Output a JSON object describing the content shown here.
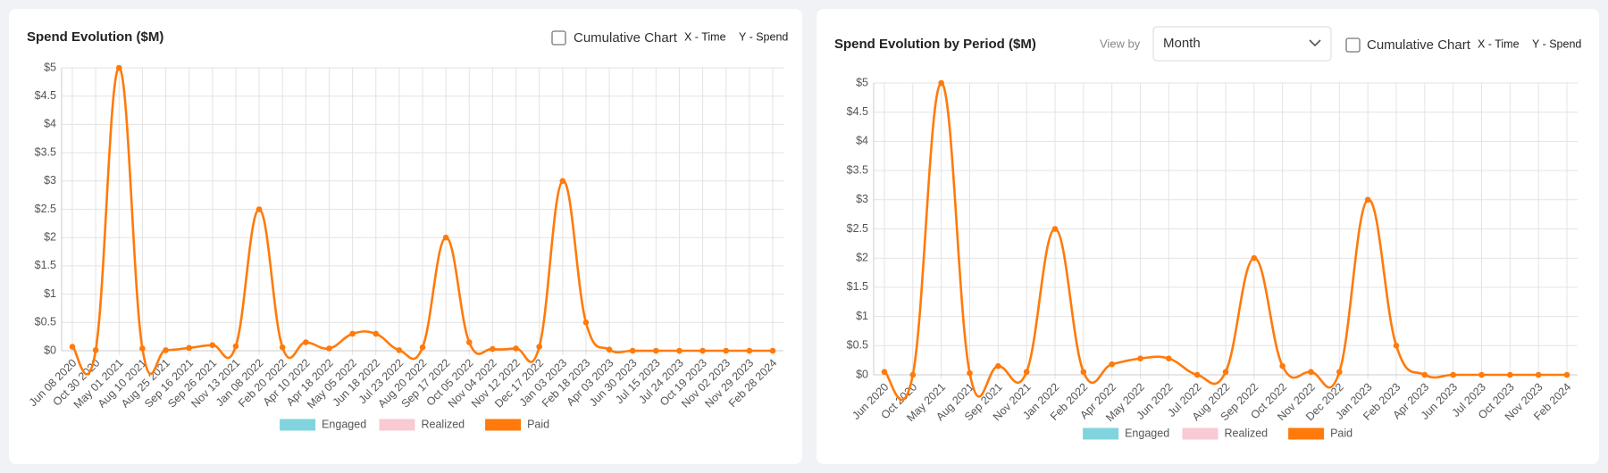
{
  "chart_data": [
    {
      "type": "line",
      "title": "Spend Evolution ($M)",
      "controls": {
        "cumulative_label": "Cumulative Chart",
        "x_hint": "X - Time",
        "y_hint": "Y - Spend"
      },
      "categories": [
        "Jun 08 2020",
        "Oct 30 2020",
        "May 01 2021",
        "Aug 10 2021",
        "Aug 25 2021",
        "Sep 16 2021",
        "Sep 26 2021",
        "Nov 13 2021",
        "Jan 08 2022",
        "Feb 20 2022",
        "Apr 10 2022",
        "Apr 18 2022",
        "May 05 2022",
        "Jun 18 2022",
        "Jul 23 2022",
        "Aug 20 2022",
        "Sep 17 2022",
        "Oct 05 2022",
        "Nov 04 2022",
        "Nov 12 2022",
        "Dec 17 2022",
        "Jan 03 2023",
        "Feb 18 2023",
        "Apr 03 2023",
        "Jun 30 2023",
        "Jul 15 2023",
        "Jul 24 2023",
        "Oct 19 2023",
        "Nov 02 2023",
        "Nov 29 2023",
        "Feb 28 2024"
      ],
      "series": [
        {
          "name": "Engaged",
          "color": "#80d4dd",
          "values": [
            null,
            null,
            null,
            null,
            null,
            null,
            null,
            null,
            null,
            null,
            null,
            null,
            null,
            null,
            null,
            null,
            null,
            null,
            null,
            null,
            null,
            null,
            null,
            null,
            null,
            null,
            null,
            null,
            null,
            null,
            null
          ]
        },
        {
          "name": "Realized",
          "color": "#f9c9d4",
          "values": [
            null,
            null,
            null,
            null,
            null,
            null,
            null,
            null,
            null,
            null,
            null,
            null,
            null,
            null,
            null,
            null,
            null,
            null,
            null,
            null,
            null,
            null,
            null,
            null,
            null,
            null,
            null,
            null,
            null,
            null,
            null
          ]
        },
        {
          "name": "Paid",
          "color": "#ff7a0a",
          "values": [
            0.07,
            0.01,
            5,
            0.04,
            0.01,
            0.05,
            0.1,
            0.08,
            2.5,
            0.06,
            0.15,
            0.04,
            0.3,
            0.3,
            0.01,
            0.06,
            2,
            0.15,
            0.03,
            0.04,
            0.07,
            3,
            0.5,
            0.02,
            0,
            0,
            0,
            0,
            0,
            0,
            0
          ]
        }
      ],
      "ylim": [
        0,
        5
      ],
      "yticks": [
        {
          "value": 0,
          "label": "$0"
        },
        {
          "value": 0.5,
          "label": "$0.5"
        },
        {
          "value": 1,
          "label": "$1"
        },
        {
          "value": 1.5,
          "label": "$1.5"
        },
        {
          "value": 2,
          "label": "$2"
        },
        {
          "value": 2.5,
          "label": "$2.5"
        },
        {
          "value": 3,
          "label": "$3"
        },
        {
          "value": 3.5,
          "label": "$3.5"
        },
        {
          "value": 4,
          "label": "$4"
        },
        {
          "value": 4.5,
          "label": "$4.5"
        },
        {
          "value": 5,
          "label": "$5"
        }
      ],
      "grid": true,
      "legend": "bottom"
    },
    {
      "type": "line",
      "title": "Spend Evolution by Period ($M)",
      "controls": {
        "view_by_label": "View by",
        "view_by_value": "Month",
        "cumulative_label": "Cumulative Chart",
        "x_hint": "X - Time",
        "y_hint": "Y - Spend"
      },
      "categories": [
        "Jun 2020",
        "Oct 2020",
        "May 2021",
        "Aug 2021",
        "Sep 2021",
        "Nov 2021",
        "Jan 2022",
        "Feb 2022",
        "Apr 2022",
        "May 2022",
        "Jun 2022",
        "Jul 2022",
        "Aug 2022",
        "Sep 2022",
        "Oct 2022",
        "Nov 2022",
        "Dec 2022",
        "Jan 2023",
        "Feb 2023",
        "Apr 2023",
        "Jun 2023",
        "Jul 2023",
        "Oct 2023",
        "Nov 2023",
        "Feb 2024"
      ],
      "series": [
        {
          "name": "Engaged",
          "color": "#80d4dd",
          "values": [
            null,
            null,
            null,
            null,
            null,
            null,
            null,
            null,
            null,
            null,
            null,
            null,
            null,
            null,
            null,
            null,
            null,
            null,
            null,
            null,
            null,
            null,
            null,
            null,
            null
          ]
        },
        {
          "name": "Realized",
          "color": "#f9c9d4",
          "values": [
            null,
            null,
            null,
            null,
            null,
            null,
            null,
            null,
            null,
            null,
            null,
            null,
            null,
            null,
            null,
            null,
            null,
            null,
            null,
            null,
            null,
            null,
            null,
            null,
            null
          ]
        },
        {
          "name": "Paid",
          "color": "#ff7a0a",
          "values": [
            0.05,
            0,
            5,
            0.03,
            0.15,
            0.05,
            2.5,
            0.05,
            0.18,
            0.28,
            0.28,
            0,
            0.05,
            2,
            0.15,
            0.05,
            0.05,
            3,
            0.5,
            0,
            0,
            0,
            0,
            0,
            0
          ]
        }
      ],
      "ylim": [
        0,
        5
      ],
      "yticks": [
        {
          "value": 0,
          "label": "$0"
        },
        {
          "value": 0.5,
          "label": "$0.5"
        },
        {
          "value": 1,
          "label": "$1"
        },
        {
          "value": 1.5,
          "label": "$1.5"
        },
        {
          "value": 2,
          "label": "$2"
        },
        {
          "value": 2.5,
          "label": "$2.5"
        },
        {
          "value": 3,
          "label": "$3"
        },
        {
          "value": 3.5,
          "label": "$3.5"
        },
        {
          "value": 4,
          "label": "$4"
        },
        {
          "value": 4.5,
          "label": "$4.5"
        },
        {
          "value": 5,
          "label": "$5"
        }
      ],
      "grid": true,
      "legend": "bottom"
    }
  ]
}
